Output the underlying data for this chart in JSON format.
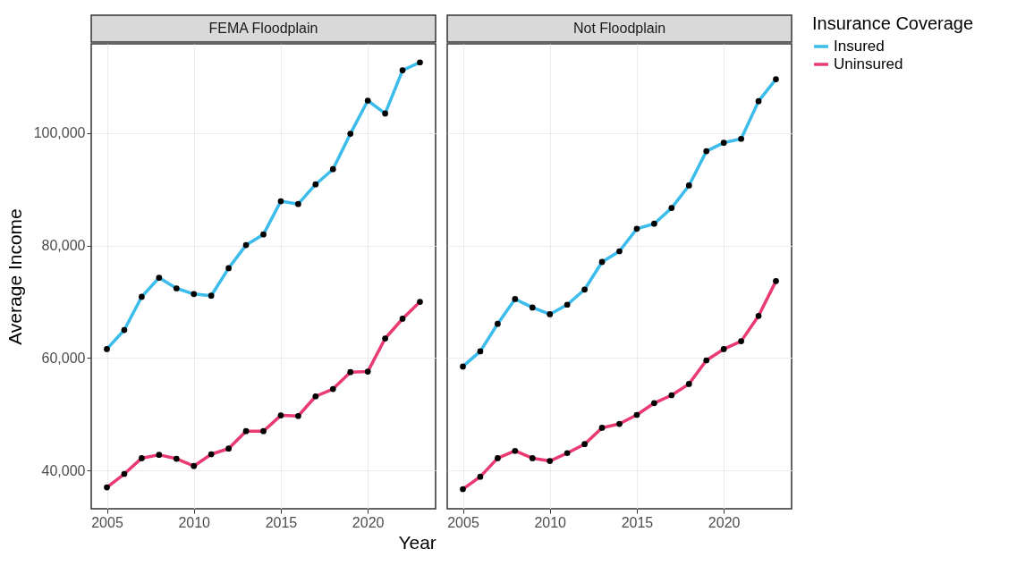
{
  "chart_data": [
    {
      "type": "line",
      "title": "FEMA Floodplain",
      "xlabel": "Year",
      "ylabel": "Average Income",
      "x": [
        2005,
        2006,
        2007,
        2008,
        2009,
        2010,
        2011,
        2012,
        2013,
        2014,
        2015,
        2016,
        2017,
        2018,
        2019,
        2020,
        2021,
        2022,
        2023
      ],
      "series": [
        {
          "name": "Insured",
          "color": "#3bbceb",
          "values": [
            61600,
            65000,
            70900,
            74300,
            72400,
            71400,
            71100,
            76000,
            80100,
            82000,
            87900,
            87400,
            90900,
            93600,
            99900,
            105800,
            103500,
            111200,
            112600
          ]
        },
        {
          "name": "Uninsured",
          "color": "#ea3a72",
          "values": [
            37000,
            39400,
            42200,
            42800,
            42100,
            40800,
            42900,
            43900,
            47000,
            47000,
            49800,
            49700,
            53200,
            54500,
            57500,
            57600,
            63500,
            67000,
            70000
          ]
        }
      ],
      "xlim": [
        2004.1,
        2023.9
      ],
      "ylim": [
        33200,
        115900
      ],
      "xticks": [
        2005,
        2010,
        2015,
        2020
      ],
      "yticks": [
        {
          "value": 40000,
          "label": "40,000"
        },
        {
          "value": 60000,
          "label": "60,000"
        },
        {
          "value": 80000,
          "label": "80,000"
        },
        {
          "value": 100000,
          "label": "100,000"
        }
      ],
      "grid": true,
      "marker": "circle",
      "legend": "right"
    },
    {
      "type": "line",
      "title": "Not Floodplain",
      "legend_title": "Insurance Coverage",
      "x": [
        2005,
        2006,
        2007,
        2008,
        2009,
        2010,
        2011,
        2012,
        2013,
        2014,
        2015,
        2016,
        2017,
        2018,
        2019,
        2020,
        2021,
        2022,
        2023
      ],
      "series": [
        {
          "name": "Insured",
          "color": "#3bbceb",
          "values": [
            58500,
            61200,
            66100,
            70500,
            69000,
            67800,
            69500,
            72200,
            77100,
            79000,
            83000,
            83900,
            86700,
            90700,
            96800,
            98300,
            99000,
            105700,
            109600
          ]
        },
        {
          "name": "Uninsured",
          "color": "#ea3a72",
          "values": [
            36700,
            38900,
            42200,
            43500,
            42200,
            41700,
            43100,
            44700,
            47600,
            48300,
            49900,
            52000,
            53400,
            55400,
            59600,
            61600,
            63000,
            67500,
            73700
          ]
        }
      ],
      "xlim": [
        2004.1,
        2023.9
      ],
      "ylim": [
        33200,
        115900
      ],
      "xticks": [
        2005,
        2010,
        2015,
        2020
      ],
      "yticks": [
        40000,
        60000,
        80000,
        100000
      ],
      "grid": true,
      "marker": "circle",
      "legend": "right",
      "tick_labels": "x"
    }
  ]
}
